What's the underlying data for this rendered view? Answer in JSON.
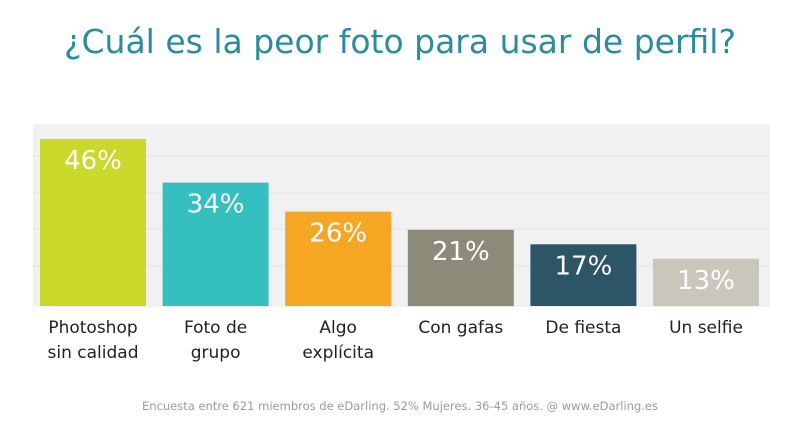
{
  "chart_data": {
    "type": "bar",
    "title": "¿Cuál es la peor foto para usar de perfil?",
    "categories": [
      [
        "Photoshop",
        "sin calidad"
      ],
      [
        "Foto de",
        "grupo"
      ],
      [
        "Algo",
        "explícita"
      ],
      [
        "Con gafas"
      ],
      [
        "De fiesta"
      ],
      [
        "Un selfie"
      ]
    ],
    "values": [
      46,
      34,
      26,
      21,
      17,
      13
    ],
    "value_labels": [
      "46%",
      "34%",
      "26%",
      "21%",
      "17%",
      "13%"
    ],
    "colors": [
      "#cbd82c",
      "#36bfbf",
      "#f5a623",
      "#8c8a79",
      "#2c5566",
      "#c9c6bb"
    ],
    "ylim": [
      0,
      46
    ],
    "grid": true,
    "legend": "none"
  },
  "footer": "Encuesta entre 621 miembros de eDarling. 52% Mujeres. 36-45 años. @ www.eDarling.es"
}
